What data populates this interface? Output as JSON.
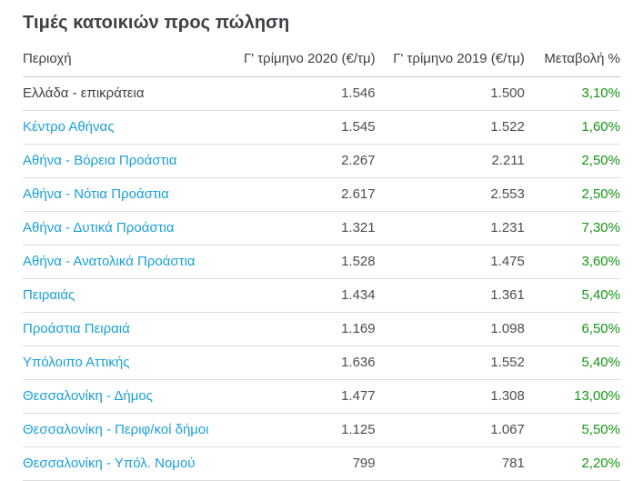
{
  "page": {
    "title": "Τιμές κατοικιών προς πώληση"
  },
  "table": {
    "columns": [
      {
        "label": "Περιοχή",
        "align": "left"
      },
      {
        "label": "Γ' τρίμηνο 2020 (€/τμ)",
        "align": "right"
      },
      {
        "label": "Γ' τρίμηνο 2019 (€/τμ)",
        "align": "right"
      },
      {
        "label": "Μεταβολή %",
        "align": "right"
      }
    ],
    "rows": [
      {
        "region": "Ελλάδα - επικράτεια",
        "is_link": false,
        "q3_2020": "1.546",
        "q3_2019": "1.500",
        "change": "3,10%"
      },
      {
        "region": "Κέντρο Αθήνας",
        "is_link": true,
        "q3_2020": "1.545",
        "q3_2019": "1.522",
        "change": "1,60%"
      },
      {
        "region": "Αθήνα - Βόρεια Προάστια",
        "is_link": true,
        "q3_2020": "2.267",
        "q3_2019": "2.211",
        "change": "2,50%"
      },
      {
        "region": "Αθήνα - Νότια Προάστια",
        "is_link": true,
        "q3_2020": "2.617",
        "q3_2019": "2.553",
        "change": "2,50%"
      },
      {
        "region": "Αθήνα - Δυτικά Προάστια",
        "is_link": true,
        "q3_2020": "1.321",
        "q3_2019": "1.231",
        "change": "7,30%"
      },
      {
        "region": "Αθήνα - Ανατολικά Προάστια",
        "is_link": true,
        "q3_2020": "1.528",
        "q3_2019": "1.475",
        "change": "3,60%"
      },
      {
        "region": "Πειραιάς",
        "is_link": true,
        "q3_2020": "1.434",
        "q3_2019": "1.361",
        "change": "5,40%"
      },
      {
        "region": "Προάστια Πειραιά",
        "is_link": true,
        "q3_2020": "1.169",
        "q3_2019": "1.098",
        "change": "6,50%"
      },
      {
        "region": "Υπόλοιπο Αττικής",
        "is_link": true,
        "q3_2020": "1.636",
        "q3_2019": "1.552",
        "change": "5,40%"
      },
      {
        "region": "Θεσσαλονίκη - Δήμος",
        "is_link": true,
        "q3_2020": "1.477",
        "q3_2019": "1.308",
        "change": "13,00%"
      },
      {
        "region": "Θεσσαλονίκη - Περιφ/κοί δήμοι",
        "is_link": true,
        "q3_2020": "1.125",
        "q3_2019": "1.067",
        "change": "5,50%"
      },
      {
        "region": "Θεσσαλονίκη - Υπόλ. Νομού",
        "is_link": true,
        "q3_2020": "799",
        "q3_2019": "781",
        "change": "2,20%"
      }
    ]
  },
  "colors": {
    "link_blue": "#1ba0d8",
    "positive_green": "#169616",
    "text_dark": "#3c4146",
    "text_num": "#4d4d4d",
    "divider": "#dcdcdc",
    "divider_strong": "#c6c6c6",
    "background": "#ffffff"
  }
}
